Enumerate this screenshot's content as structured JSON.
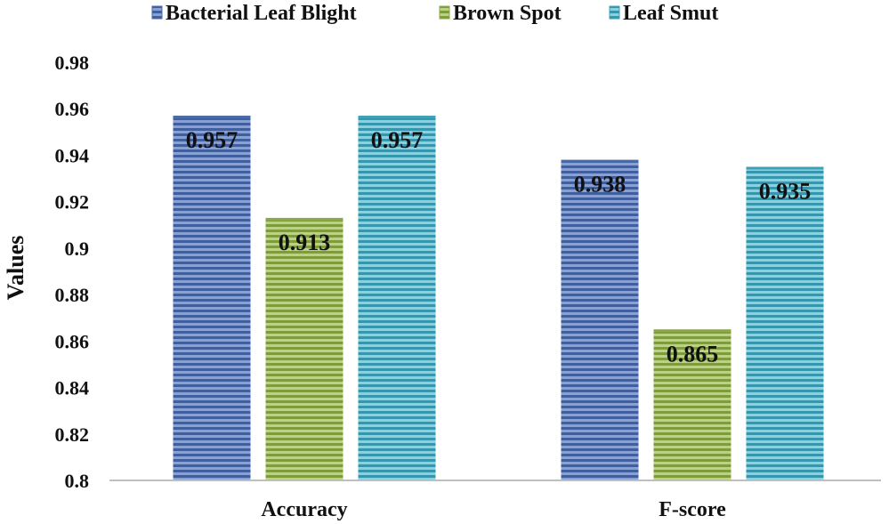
{
  "chart_data": {
    "type": "bar",
    "title": "",
    "xlabel": "",
    "ylabel": "Values",
    "ylim": [
      0.8,
      0.98
    ],
    "yticks": [
      "0.8",
      "0.82",
      "0.84",
      "0.86",
      "0.88",
      "0.9",
      "0.92",
      "0.94",
      "0.96",
      "0.98"
    ],
    "categories": [
      "Accuracy",
      "F-score"
    ],
    "series": [
      {
        "name": "Bacterial Leaf Blight",
        "values": [
          0.957,
          0.938
        ],
        "labels": [
          "0.957",
          "0.938"
        ],
        "color": "#4a6aa8"
      },
      {
        "name": "Brown Spot",
        "values": [
          0.913,
          0.865
        ],
        "labels": [
          "0.913",
          "0.865"
        ],
        "color": "#8aa84a"
      },
      {
        "name": "Leaf Smut",
        "values": [
          0.957,
          0.935
        ],
        "labels": [
          "0.957",
          "0.935"
        ],
        "color": "#3fa0b8"
      }
    ],
    "legend_position": "top",
    "grid": false
  }
}
